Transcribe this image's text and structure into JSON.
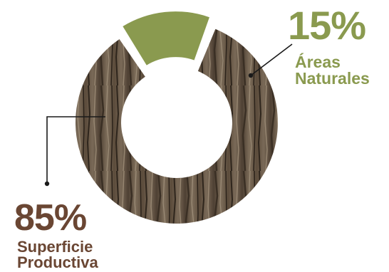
{
  "chart_data": {
    "type": "pie",
    "slices": [
      {
        "label": "Superficie Productiva",
        "value": 85,
        "color": "#6b5a47",
        "percent_text": "85%",
        "label_lines": [
          "Superficie",
          "Productiva"
        ]
      },
      {
        "label": "Áreas Naturales",
        "value": 15,
        "color": "#8a9a4f",
        "percent_text": "15%",
        "label_lines": [
          "Áreas",
          "Naturales"
        ]
      }
    ],
    "donut": true,
    "exploded_slice": "Áreas Naturales",
    "title": "",
    "legend": "none"
  },
  "colors": {
    "productive_text": "#6a4633",
    "natural_text": "#8a9a4f",
    "leader_line": "#1a1a1a"
  }
}
